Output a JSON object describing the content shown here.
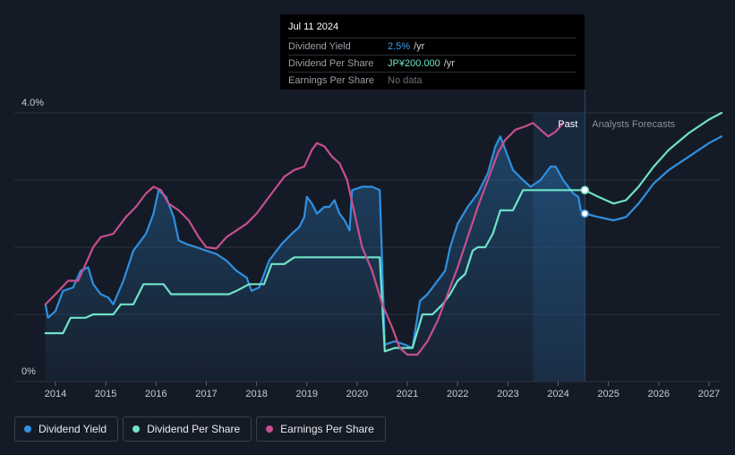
{
  "tooltip": {
    "date": "Jul 11 2024",
    "rows": [
      {
        "label": "Dividend Yield",
        "value": "2.5%",
        "unit": "/yr"
      },
      {
        "label": "Dividend Per Share",
        "value": "JP¥200.000",
        "unit": "/yr"
      },
      {
        "label": "Earnings Per Share",
        "value": "No data",
        "unit": ""
      }
    ]
  },
  "legend": [
    {
      "label": "Dividend Yield",
      "color": "#2f8fe0"
    },
    {
      "label": "Dividend Per Share",
      "color": "#6fe3c8"
    },
    {
      "label": "Earnings Per Share",
      "color": "#c64f8e"
    }
  ],
  "chart_data": {
    "type": "line",
    "title": "",
    "y_axis_labels": [
      "4.0%",
      "0%"
    ],
    "ylim": [
      0,
      4.0
    ],
    "xlim": [
      2013.6,
      2027.3
    ],
    "x_tick_labels": [
      "2014",
      "2015",
      "2016",
      "2017",
      "2018",
      "2019",
      "2020",
      "2021",
      "2022",
      "2023",
      "2024",
      "2025",
      "2026",
      "2027"
    ],
    "past_label": "Past",
    "forecast_label": "Analysts Forecasts",
    "past_boundary": 2024.53,
    "past_band_start": 2023.5,
    "series": [
      {
        "name": "Dividend Yield",
        "color": "#2f8fe0",
        "points": [
          [
            2013.8,
            1.15
          ],
          [
            2013.85,
            0.95
          ],
          [
            2014.0,
            1.05
          ],
          [
            2014.15,
            1.35
          ],
          [
            2014.35,
            1.4
          ],
          [
            2014.5,
            1.65
          ],
          [
            2014.65,
            1.7
          ],
          [
            2014.75,
            1.45
          ],
          [
            2014.8,
            1.4
          ],
          [
            2014.9,
            1.3
          ],
          [
            2015.05,
            1.25
          ],
          [
            2015.15,
            1.15
          ],
          [
            2015.35,
            1.5
          ],
          [
            2015.55,
            1.95
          ],
          [
            2015.8,
            2.2
          ],
          [
            2015.95,
            2.5
          ],
          [
            2016.05,
            2.85
          ],
          [
            2016.2,
            2.75
          ],
          [
            2016.35,
            2.45
          ],
          [
            2016.45,
            2.1
          ],
          [
            2016.6,
            2.05
          ],
          [
            2016.8,
            2.0
          ],
          [
            2017.0,
            1.95
          ],
          [
            2017.2,
            1.9
          ],
          [
            2017.4,
            1.8
          ],
          [
            2017.6,
            1.65
          ],
          [
            2017.8,
            1.55
          ],
          [
            2017.9,
            1.35
          ],
          [
            2018.05,
            1.4
          ],
          [
            2018.25,
            1.8
          ],
          [
            2018.5,
            2.05
          ],
          [
            2018.7,
            2.2
          ],
          [
            2018.85,
            2.3
          ],
          [
            2018.95,
            2.45
          ],
          [
            2019.0,
            2.75
          ],
          [
            2019.1,
            2.65
          ],
          [
            2019.2,
            2.5
          ],
          [
            2019.35,
            2.6
          ],
          [
            2019.45,
            2.6
          ],
          [
            2019.55,
            2.7
          ],
          [
            2019.65,
            2.5
          ],
          [
            2019.75,
            2.4
          ],
          [
            2019.85,
            2.25
          ],
          [
            2019.9,
            2.85
          ],
          [
            2020.1,
            2.9
          ],
          [
            2020.3,
            2.9
          ],
          [
            2020.45,
            2.85
          ],
          [
            2020.55,
            0.55
          ],
          [
            2020.75,
            0.6
          ],
          [
            2020.95,
            0.55
          ],
          [
            2021.1,
            0.5
          ],
          [
            2021.25,
            1.2
          ],
          [
            2021.4,
            1.3
          ],
          [
            2021.55,
            1.45
          ],
          [
            2021.75,
            1.65
          ],
          [
            2021.85,
            2.0
          ],
          [
            2022.0,
            2.35
          ],
          [
            2022.2,
            2.6
          ],
          [
            2022.4,
            2.8
          ],
          [
            2022.6,
            3.1
          ],
          [
            2022.75,
            3.5
          ],
          [
            2022.85,
            3.65
          ],
          [
            2022.95,
            3.45
          ],
          [
            2023.1,
            3.15
          ],
          [
            2023.3,
            3.0
          ],
          [
            2023.45,
            2.9
          ],
          [
            2023.65,
            3.0
          ],
          [
            2023.85,
            3.2
          ],
          [
            2023.95,
            3.2
          ],
          [
            2024.1,
            3.0
          ],
          [
            2024.3,
            2.8
          ],
          [
            2024.4,
            2.75
          ],
          [
            2024.45,
            2.55
          ],
          [
            2024.53,
            2.5
          ]
        ]
      },
      {
        "name": "Dividend Yield (forecast)",
        "color": "#2f8fe0",
        "points": [
          [
            2024.53,
            2.5
          ],
          [
            2024.8,
            2.45
          ],
          [
            2025.1,
            2.4
          ],
          [
            2025.35,
            2.45
          ],
          [
            2025.6,
            2.65
          ],
          [
            2025.9,
            2.95
          ],
          [
            2026.2,
            3.15
          ],
          [
            2026.6,
            3.35
          ],
          [
            2027.0,
            3.55
          ],
          [
            2027.25,
            3.65
          ]
        ]
      },
      {
        "name": "Dividend Per Share",
        "color": "#6fe3c8",
        "points": [
          [
            2013.8,
            0.72
          ],
          [
            2014.15,
            0.72
          ],
          [
            2014.3,
            0.95
          ],
          [
            2014.6,
            0.95
          ],
          [
            2014.75,
            1.0
          ],
          [
            2014.95,
            1.0
          ],
          [
            2015.15,
            1.0
          ],
          [
            2015.3,
            1.15
          ],
          [
            2015.55,
            1.15
          ],
          [
            2015.75,
            1.45
          ],
          [
            2016.15,
            1.45
          ],
          [
            2016.3,
            1.3
          ],
          [
            2017.45,
            1.3
          ],
          [
            2017.6,
            1.35
          ],
          [
            2017.85,
            1.45
          ],
          [
            2018.15,
            1.45
          ],
          [
            2018.3,
            1.75
          ],
          [
            2018.55,
            1.75
          ],
          [
            2018.75,
            1.85
          ],
          [
            2020.45,
            1.85
          ],
          [
            2020.55,
            0.45
          ],
          [
            2020.75,
            0.5
          ],
          [
            2021.1,
            0.5
          ],
          [
            2021.3,
            1.0
          ],
          [
            2021.5,
            1.0
          ],
          [
            2021.7,
            1.15
          ],
          [
            2021.85,
            1.3
          ],
          [
            2022.0,
            1.5
          ],
          [
            2022.15,
            1.6
          ],
          [
            2022.3,
            1.95
          ],
          [
            2022.4,
            2.0
          ],
          [
            2022.55,
            2.0
          ],
          [
            2022.7,
            2.2
          ],
          [
            2022.85,
            2.55
          ],
          [
            2023.1,
            2.55
          ],
          [
            2023.3,
            2.85
          ],
          [
            2024.53,
            2.85
          ]
        ]
      },
      {
        "name": "Dividend Per Share (forecast)",
        "color": "#6fe3c8",
        "points": [
          [
            2024.53,
            2.85
          ],
          [
            2024.8,
            2.75
          ],
          [
            2025.1,
            2.65
          ],
          [
            2025.35,
            2.7
          ],
          [
            2025.6,
            2.9
          ],
          [
            2025.9,
            3.2
          ],
          [
            2026.2,
            3.45
          ],
          [
            2026.6,
            3.7
          ],
          [
            2027.0,
            3.9
          ],
          [
            2027.25,
            4.0
          ]
        ]
      },
      {
        "name": "Earnings Per Share",
        "color": "#c64f8e",
        "points": [
          [
            2013.8,
            1.15
          ],
          [
            2014.0,
            1.3
          ],
          [
            2014.25,
            1.5
          ],
          [
            2014.45,
            1.5
          ],
          [
            2014.6,
            1.75
          ],
          [
            2014.75,
            2.0
          ],
          [
            2014.9,
            2.15
          ],
          [
            2015.15,
            2.2
          ],
          [
            2015.4,
            2.45
          ],
          [
            2015.6,
            2.6
          ],
          [
            2015.8,
            2.8
          ],
          [
            2015.95,
            2.9
          ],
          [
            2016.1,
            2.85
          ],
          [
            2016.25,
            2.65
          ],
          [
            2016.45,
            2.55
          ],
          [
            2016.65,
            2.4
          ],
          [
            2016.85,
            2.15
          ],
          [
            2017.0,
            2.0
          ],
          [
            2017.2,
            1.98
          ],
          [
            2017.4,
            2.15
          ],
          [
            2017.6,
            2.25
          ],
          [
            2017.8,
            2.35
          ],
          [
            2018.0,
            2.5
          ],
          [
            2018.2,
            2.7
          ],
          [
            2018.4,
            2.9
          ],
          [
            2018.55,
            3.05
          ],
          [
            2018.75,
            3.15
          ],
          [
            2018.95,
            3.2
          ],
          [
            2019.1,
            3.45
          ],
          [
            2019.2,
            3.55
          ],
          [
            2019.35,
            3.5
          ],
          [
            2019.5,
            3.35
          ],
          [
            2019.65,
            3.25
          ],
          [
            2019.8,
            3.0
          ],
          [
            2019.95,
            2.5
          ],
          [
            2020.1,
            2.0
          ],
          [
            2020.3,
            1.65
          ],
          [
            2020.5,
            1.15
          ],
          [
            2020.7,
            0.8
          ],
          [
            2020.85,
            0.5
          ],
          [
            2021.0,
            0.4
          ],
          [
            2021.2,
            0.4
          ],
          [
            2021.4,
            0.6
          ],
          [
            2021.6,
            0.9
          ],
          [
            2021.8,
            1.3
          ],
          [
            2022.0,
            1.7
          ],
          [
            2022.2,
            2.15
          ],
          [
            2022.4,
            2.6
          ],
          [
            2022.6,
            3.0
          ],
          [
            2022.8,
            3.4
          ],
          [
            2022.95,
            3.6
          ],
          [
            2023.15,
            3.75
          ],
          [
            2023.35,
            3.8
          ],
          [
            2023.5,
            3.85
          ],
          [
            2023.65,
            3.75
          ],
          [
            2023.8,
            3.65
          ],
          [
            2023.95,
            3.72
          ],
          [
            2024.1,
            3.85
          ]
        ]
      }
    ]
  }
}
